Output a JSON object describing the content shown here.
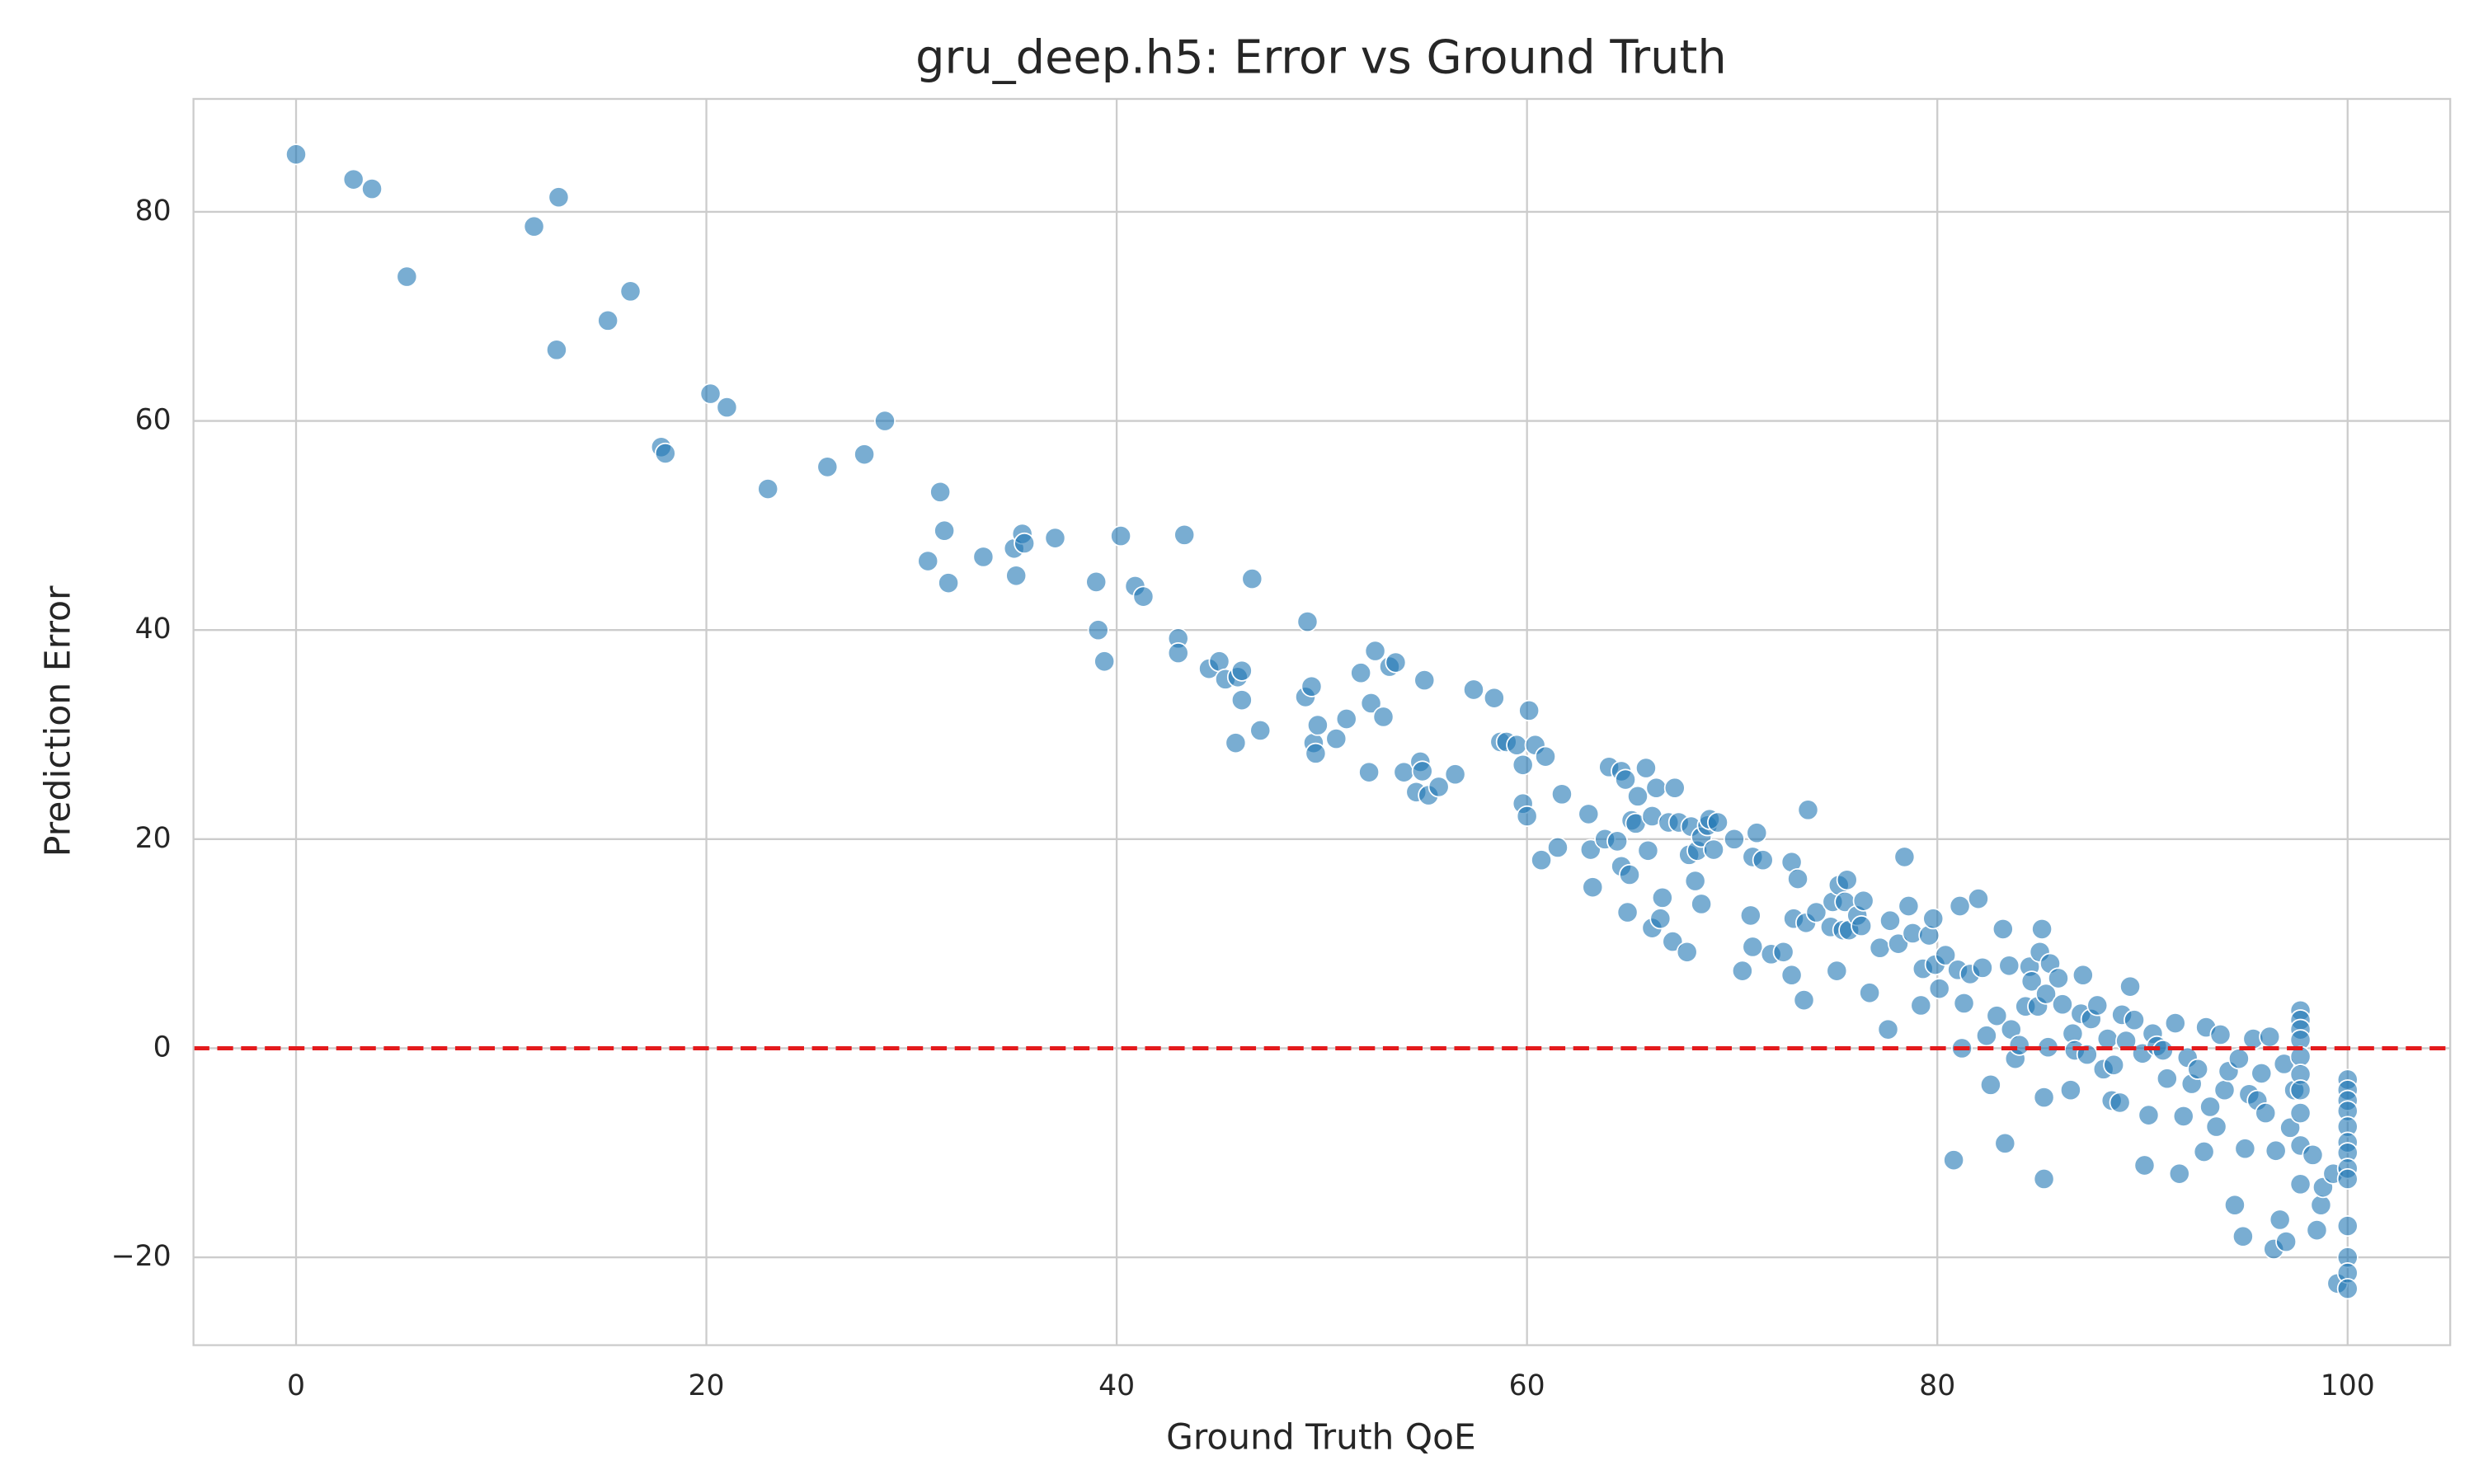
{
  "chart_data": {
    "type": "scatter",
    "title": "gru_deep.h5: Error vs Ground Truth",
    "x_label": "Ground Truth QoE",
    "y_label": "Prediction Error",
    "xlim": [
      -5,
      105
    ],
    "ylim": [
      -28.4,
      90.8
    ],
    "xticks": [
      0,
      20,
      40,
      60,
      80,
      100
    ],
    "yticks": [
      {
        "value": -20,
        "label": "−20"
      },
      0,
      20,
      40,
      60,
      80
    ],
    "grid": true,
    "reference_line": {
      "value": 0,
      "color": "#e41a1c"
    },
    "series": [
      {
        "color": "#1f77b4",
        "x": [
          0,
          2.8,
          3.7,
          5.4,
          11.6,
          12.7,
          12.8,
          15.2,
          16.3,
          17.8,
          18,
          20.2,
          21,
          23,
          25.9,
          27.7,
          28.7,
          30.8,
          31.4,
          31.6,
          31.8,
          33.5,
          35,
          35.1,
          35.4,
          35.5,
          37,
          39,
          39.1,
          39.4,
          40.2,
          40.9,
          41.3,
          43,
          43,
          43.3,
          44.5,
          45,
          45.3,
          45.8,
          45.9,
          46.1,
          46.1,
          46.6,
          47,
          49.2,
          49.3,
          49.5,
          49.6,
          49.7,
          49.8,
          50.7,
          51.2,
          51.9,
          52.3,
          52.4,
          52.6,
          53,
          53.3,
          53.6,
          54,
          54.6,
          54.8,
          54.9,
          55,
          55.2,
          55.7,
          56.5,
          57.4,
          58.4,
          58.7,
          59,
          59.5,
          59.8,
          59.8,
          60,
          60.1,
          60.4,
          60.7,
          60.9,
          61.5,
          61.7,
          63,
          63.1,
          63.2,
          63.8,
          64,
          64.4,
          64.6,
          64.6,
          64.8,
          64.9,
          65,
          65.1,
          65.3,
          65.4,
          65.8,
          65.9,
          66.1,
          66.1,
          66.3,
          66.5,
          66.6,
          66.9,
          67.1,
          67.2,
          67.4,
          67.8,
          67.9,
          68,
          68.2,
          68.3,
          68.5,
          68.5,
          68.8,
          68.9,
          69.1,
          69.3,
          70.1,
          70.5,
          70.9,
          71,
          71,
          71.2,
          71.5,
          71.9,
          72.5,
          72.9,
          72.9,
          73,
          73.2,
          73.5,
          73.6,
          73.7,
          74.1,
          74.8,
          74.9,
          75.1,
          75.2,
          75.4,
          75.5,
          75.6,
          75.7,
          76.1,
          76.3,
          76.4,
          76.7,
          77.2,
          77.6,
          77.7,
          78.1,
          78.4,
          78.6,
          78.8,
          79.2,
          79.3,
          79.6,
          79.8,
          79.9,
          80.1,
          80.4,
          80.8,
          81,
          81.1,
          81.2,
          81.3,
          81.6,
          82,
          82.2,
          82.4,
          82.6,
          82.9,
          83.2,
          83.3,
          83.5,
          83.6,
          83.8,
          84,
          84.3,
          84.5,
          84.6,
          84.9,
          85,
          85.1,
          85.2,
          85.2,
          85.3,
          85.4,
          85.5,
          85.9,
          86.1,
          86.5,
          86.6,
          86.7,
          87,
          87.1,
          87.3,
          87.5,
          87.8,
          88.1,
          88.3,
          88.5,
          88.6,
          88.9,
          89,
          89.2,
          89.4,
          89.6,
          90,
          90.1,
          90.3,
          90.5,
          90.7,
          91,
          91.2,
          91.6,
          91.8,
          92,
          92.2,
          92.4,
          92.7,
          93,
          93.1,
          93.3,
          93.6,
          93.8,
          94,
          94.2,
          94.5,
          94.7,
          94.9,
          95,
          95.2,
          95.4,
          95.6,
          95.8,
          96,
          96.2,
          96.4,
          96.5,
          96.7,
          96.9,
          97,
          97.2,
          97.4,
          97.7,
          97.7,
          97.7,
          97.7,
          97.7,
          97.7,
          97.7,
          97.7,
          97.7,
          97.7,
          98.3,
          98.5,
          98.7,
          98.8,
          99.3,
          99.5,
          100,
          100,
          100,
          100,
          100,
          100,
          100,
          100,
          100,
          100,
          100,
          100,
          100
        ],
        "values": [
          85.5,
          83.1,
          82.2,
          73.8,
          78.6,
          66.8,
          81.4,
          69.6,
          72.4,
          57.5,
          56.9,
          62.6,
          61.3,
          53.5,
          55.6,
          56.8,
          60,
          46.6,
          53.2,
          49.5,
          44.5,
          47,
          47.8,
          45.2,
          49.2,
          48.3,
          48.8,
          44.6,
          40,
          37,
          49,
          44.2,
          43.2,
          39.2,
          37.8,
          49.1,
          36.3,
          37,
          35.3,
          29.2,
          35.5,
          36.1,
          33.3,
          44.9,
          30.4,
          33.6,
          40.8,
          34.6,
          29.2,
          28.2,
          30.9,
          29.6,
          31.5,
          35.9,
          26.4,
          33,
          38,
          31.7,
          36.5,
          36.9,
          26.4,
          24.5,
          27.4,
          26.5,
          35.2,
          24.2,
          25,
          26.2,
          34.3,
          33.5,
          29.3,
          29.3,
          29,
          23.4,
          27.1,
          22.2,
          32.3,
          29,
          18,
          27.9,
          19.2,
          24.3,
          22.4,
          19,
          15.4,
          20,
          26.9,
          19.8,
          17.4,
          26.5,
          25.7,
          13,
          16.6,
          21.8,
          21.5,
          24.1,
          26.8,
          18.9,
          11.5,
          22.2,
          24.9,
          12.4,
          14.4,
          21.6,
          10.2,
          24.9,
          21.6,
          9.2,
          18.5,
          21.2,
          16,
          18.9,
          13.8,
          20.2,
          21.3,
          21.9,
          19,
          21.6,
          20,
          7.4,
          12.7,
          9.7,
          18.3,
          20.6,
          18,
          9,
          9.2,
          7,
          17.8,
          12.4,
          16.2,
          4.6,
          12,
          22.8,
          13,
          11.6,
          14,
          7.4,
          15.6,
          11.3,
          14,
          16.1,
          11.3,
          12.7,
          11.7,
          14.1,
          5.3,
          9.6,
          1.8,
          12.2,
          10,
          18.3,
          13.6,
          11,
          4.1,
          7.6,
          10.8,
          12.4,
          8,
          5.7,
          8.9,
          -10.7,
          7.5,
          13.6,
          0,
          4.3,
          7.1,
          14.3,
          7.7,
          1.2,
          -3.5,
          3.1,
          11.4,
          -9.1,
          7.9,
          1.8,
          -1,
          0.3,
          4,
          7.8,
          6.4,
          4,
          9.2,
          11.4,
          -4.7,
          -12.5,
          5.2,
          0.1,
          8.1,
          6.7,
          4.2,
          -4,
          1.4,
          -0.2,
          3.3,
          7,
          -0.6,
          2.8,
          4.1,
          -2,
          0.9,
          -5,
          -1.6,
          -5.2,
          3.2,
          0.7,
          5.9,
          2.7,
          -0.5,
          -11.2,
          -6.4,
          1.4,
          0.2,
          -0.2,
          -2.9,
          2.4,
          -12,
          -6.5,
          -0.9,
          -3.4,
          -2,
          -9.9,
          2,
          -5.6,
          -7.5,
          1.3,
          -4,
          -2.2,
          -15,
          -1,
          -18,
          -9.6,
          -4.4,
          0.9,
          -5,
          -2.4,
          -6.2,
          1.1,
          -19.2,
          -9.8,
          -16.4,
          -1.5,
          -18.5,
          -7.6,
          -4,
          3.6,
          2.7,
          1.8,
          0.8,
          -0.8,
          -2.5,
          -4,
          -6.2,
          -9.3,
          -13,
          -10.2,
          -17.4,
          -15,
          -13.3,
          -12,
          -22.5,
          -3,
          -4,
          -5,
          -6,
          -7.5,
          -9,
          -10,
          -11.5,
          -12.5,
          -17,
          -20,
          -21.5,
          -23
        ]
      }
    ]
  }
}
